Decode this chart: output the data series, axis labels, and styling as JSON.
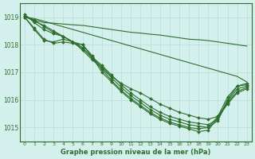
{
  "background_color": "#d4f0ec",
  "grid_color": "#b8ddd8",
  "line_color": "#2d6e2d",
  "title": "Graphe pression niveau de la mer (hPa)",
  "xlim": [
    -0.5,
    23.5
  ],
  "ylim": [
    1014.5,
    1019.5
  ],
  "yticks": [
    1015,
    1016,
    1017,
    1018,
    1019
  ],
  "xticks": [
    0,
    1,
    2,
    3,
    4,
    5,
    6,
    7,
    8,
    9,
    10,
    11,
    12,
    13,
    14,
    15,
    16,
    17,
    18,
    19,
    20,
    21,
    22,
    23
  ],
  "lines_no_marker": [
    [
      1019.0,
      1018.95,
      1018.85,
      1018.75,
      1018.65,
      1018.55,
      1018.45,
      1018.35,
      1018.25,
      1018.15,
      1018.05,
      1017.95,
      1017.85,
      1017.75,
      1017.65,
      1017.55,
      1017.45,
      1017.35,
      1017.25,
      1017.15,
      1017.05,
      1016.95,
      1016.85,
      1016.65
    ],
    [
      1019.0,
      1018.9,
      1018.8,
      1018.78,
      1018.75,
      1018.72,
      1018.7,
      1018.65,
      1018.6,
      1018.55,
      1018.5,
      1018.45,
      1018.42,
      1018.38,
      1018.35,
      1018.3,
      1018.25,
      1018.2,
      1018.18,
      1018.15,
      1018.1,
      1018.05,
      1018.0,
      1017.95
    ]
  ],
  "lines_with_marker": [
    {
      "y": [
        1019.1,
        1018.8,
        1018.55,
        1018.4,
        1018.3,
        1018.1,
        1017.9,
        1017.5,
        1017.2,
        1016.85,
        1016.6,
        1016.4,
        1016.25,
        1016.05,
        1015.85,
        1015.7,
        1015.55,
        1015.45,
        1015.35,
        1015.3,
        1015.4,
        1016.1,
        1016.5,
        1016.6
      ],
      "marker_y": [
        1019.1,
        1018.8,
        1018.55,
        1018.4,
        1018.3,
        1018.1,
        1017.9,
        1017.5,
        1017.2,
        1016.85,
        1016.6,
        1016.4,
        1016.25,
        1016.05,
        1015.85,
        1015.7,
        1015.55,
        1015.45,
        1015.35,
        1015.3,
        1015.4,
        1016.1,
        1016.5,
        1016.6
      ]
    },
    {
      "y": [
        1019.05,
        1018.9,
        1018.65,
        1018.45,
        1018.3,
        1018.1,
        1017.85,
        1017.55,
        1017.25,
        1016.9,
        1016.55,
        1016.25,
        1016.0,
        1015.75,
        1015.55,
        1015.4,
        1015.3,
        1015.2,
        1015.15,
        1015.1,
        1015.3,
        1016.0,
        1016.5,
        1016.55
      ],
      "marker_y": [
        1019.05,
        1018.9,
        1018.65,
        1018.45,
        1018.3,
        1018.1,
        1017.85,
        1017.55,
        1017.25,
        1016.9,
        1016.55,
        1016.25,
        1016.0,
        1015.75,
        1015.55,
        1015.4,
        1015.3,
        1015.2,
        1015.15,
        1015.1,
        1015.3,
        1016.0,
        1016.5,
        1016.55
      ]
    },
    {
      "y": [
        1019.05,
        1018.85,
        1018.7,
        1018.5,
        1018.3,
        1018.1,
        1017.8,
        1017.45,
        1017.15,
        1016.8,
        1016.45,
        1016.15,
        1015.9,
        1015.65,
        1015.45,
        1015.3,
        1015.2,
        1015.1,
        1015.05,
        1015.0,
        1015.25,
        1015.95,
        1016.4,
        1016.5
      ],
      "marker_y": [
        1019.05,
        1018.85,
        1018.7,
        1018.5,
        1018.3,
        1018.1,
        1017.8,
        1017.45,
        1017.15,
        1016.8,
        1016.45,
        1016.15,
        1015.9,
        1015.65,
        1015.45,
        1015.3,
        1015.2,
        1015.1,
        1015.05,
        1015.0,
        1015.25,
        1015.95,
        1016.4,
        1016.5
      ]
    },
    {
      "y": [
        1019.0,
        1018.6,
        1018.2,
        1018.05,
        1018.1,
        1018.05,
        1018.0,
        1017.6,
        1017.1,
        1016.7,
        1016.35,
        1016.05,
        1015.8,
        1015.55,
        1015.35,
        1015.2,
        1015.1,
        1015.0,
        1014.95,
        1015.0,
        1015.4,
        1015.9,
        1016.3,
        1016.45
      ],
      "marker_y": [
        1019.0,
        1018.6,
        1018.2,
        1018.05,
        1018.1,
        1018.05,
        1018.0,
        1017.6,
        1017.1,
        1016.7,
        1016.35,
        1016.05,
        1015.8,
        1015.55,
        1015.35,
        1015.2,
        1015.1,
        1015.0,
        1014.95,
        1015.0,
        1015.4,
        1015.9,
        1016.3,
        1016.45
      ]
    },
    {
      "y": [
        1019.0,
        1018.55,
        1018.15,
        1018.1,
        1018.2,
        1018.1,
        1018.0,
        1017.55,
        1017.0,
        1016.65,
        1016.3,
        1016.0,
        1015.75,
        1015.5,
        1015.3,
        1015.15,
        1015.05,
        1014.95,
        1014.85,
        1014.9,
        1015.35,
        1015.85,
        1016.25,
        1016.4
      ],
      "marker_y": [
        1019.0,
        1018.55,
        1018.15,
        1018.1,
        1018.2,
        1018.1,
        1018.0,
        1017.55,
        1017.0,
        1016.65,
        1016.3,
        1016.0,
        1015.75,
        1015.5,
        1015.3,
        1015.15,
        1015.05,
        1014.95,
        1014.85,
        1014.9,
        1015.35,
        1015.85,
        1016.25,
        1016.4
      ]
    }
  ]
}
